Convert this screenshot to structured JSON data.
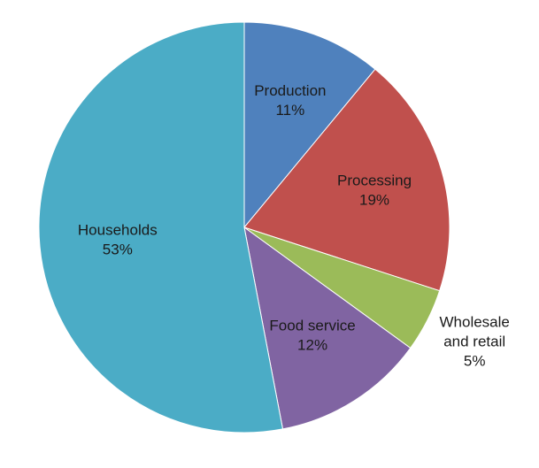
{
  "chart_data": {
    "type": "pie",
    "title": "",
    "slices": [
      {
        "label_lines": [
          "Production"
        ],
        "value": 11,
        "value_label": "11%",
        "color": "#4f81bd"
      },
      {
        "label_lines": [
          "Processing"
        ],
        "value": 19,
        "value_label": "19%",
        "color": "#c0504d"
      },
      {
        "label_lines": [
          "Wholesale",
          "and retail"
        ],
        "value": 5,
        "value_label": "5%",
        "color": "#9bbb59"
      },
      {
        "label_lines": [
          "Food service"
        ],
        "value": 12,
        "value_label": "12%",
        "color": "#8064a2"
      },
      {
        "label_lines": [
          "Households"
        ],
        "value": 53,
        "value_label": "53%",
        "color": "#4bacc6"
      }
    ]
  }
}
